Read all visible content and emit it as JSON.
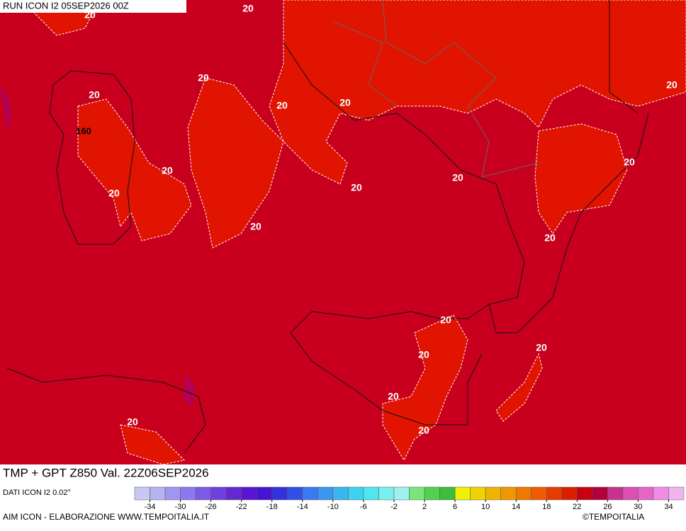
{
  "header": {
    "run": "RUN ICON I2 05SEP2026 00Z"
  },
  "map": {
    "contour_labels": [
      20,
      20,
      20,
      20,
      20,
      20,
      20,
      20,
      20,
      20,
      20,
      20,
      20,
      20,
      20,
      20,
      20,
      20,
      20,
      20
    ],
    "height_label": 160
  },
  "footer": {
    "title": "TMP + GPT Z850 Val. 22Z06SEP2026",
    "source": "DATI ICON I2 0.02°",
    "credit": "AIM ICON - ELABORAZIONE WWW.TEMPOITALIA.IT",
    "copyright": "©TEMPOITALIA"
  },
  "colorbar": {
    "colors": [
      "#c8c8f0",
      "#b4b4f0",
      "#a096f0",
      "#8c78f0",
      "#7c5ae6",
      "#7040dc",
      "#6428d2",
      "#5a14d2",
      "#4614d2",
      "#3232dc",
      "#3250e6",
      "#3c78f0",
      "#3c96f0",
      "#3cb4f0",
      "#3cd2f0",
      "#50e6f0",
      "#78f0f0",
      "#a0f0f0",
      "#78e678",
      "#50d250",
      "#3cbe3c",
      "#f0f000",
      "#f0d200",
      "#f0b400",
      "#f09600",
      "#f07800",
      "#f05a00",
      "#e63c00",
      "#dc1e00",
      "#c80014",
      "#b4003c",
      "#c8328c",
      "#dc50b4",
      "#e664c8",
      "#f08ce6",
      "#f0b4f0"
    ],
    "ticks": [
      -34,
      -30,
      -26,
      -22,
      -18,
      -14,
      -10,
      -6,
      -2,
      2,
      6,
      10,
      14,
      18,
      22,
      26,
      30,
      34
    ]
  }
}
